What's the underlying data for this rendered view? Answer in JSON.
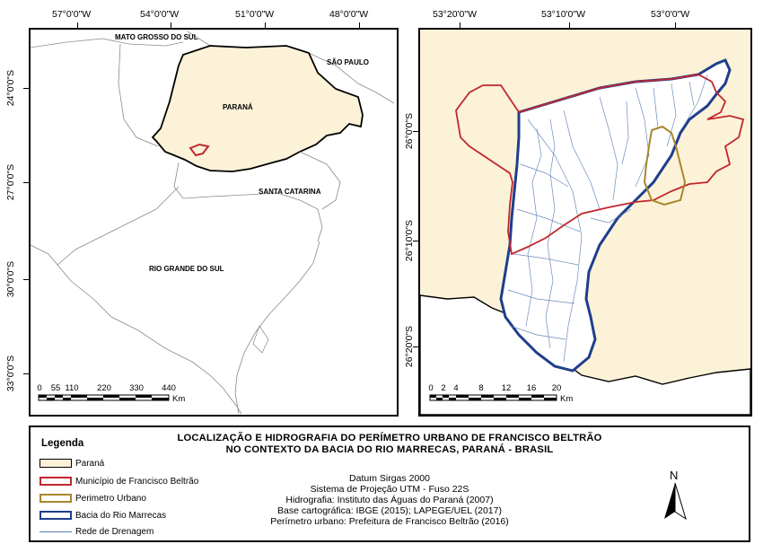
{
  "left_map": {
    "top_coords": [
      "57°0'0\"W",
      "54°0'0\"W",
      "51°0'0\"W",
      "48°0'0\"W"
    ],
    "side_coords": [
      "24°0'0\"S",
      "27°0'0\"S",
      "30°0'0\"S",
      "33°0'0\"S"
    ],
    "labels": {
      "mato_grosso_do_sul": "MATO GROSSO DO SUL",
      "sao_paulo": "SÃO PAULO",
      "parana": "PARANÁ",
      "santa_catarina": "SANTA CATARINA",
      "rio_grande_do_sul": "RIO GRANDE DO SUL"
    },
    "scale": {
      "ticks": [
        "0",
        "55",
        "110",
        "220",
        "330",
        "440"
      ],
      "unit": "Km"
    }
  },
  "right_map": {
    "top_coords": [
      "53°20'0\"W",
      "53°10'0\"W",
      "53°0'0\"W"
    ],
    "side_coords": [
      "26°0'0\"S",
      "26°10'0\"S",
      "26°20'0\"S"
    ],
    "scale": {
      "ticks": [
        "0",
        "2",
        "4",
        "8",
        "12",
        "16",
        "20"
      ],
      "unit": "Km"
    }
  },
  "legend": {
    "title": "Legenda",
    "items": [
      {
        "label": "Paraná",
        "kind": "fill",
        "fill": "#fcf2d8",
        "stroke": "#000000"
      },
      {
        "label": "Município de Francisco Beltrão",
        "kind": "outline",
        "stroke": "#c1272d"
      },
      {
        "label": "Perimetro Urbano",
        "kind": "outline",
        "stroke": "#a8862b"
      },
      {
        "label": "Bacia do Rio Marrecas",
        "kind": "outline",
        "stroke": "#1f3e8c"
      },
      {
        "label": "Rede de Drenagem",
        "kind": "line",
        "stroke": "#5b7fb6"
      }
    ]
  },
  "title": {
    "line1": "LOCALIZAÇÃO E HIDROGRAFIA DO PERÍMETRO URBANO DE FRANCISCO BELTRÃO",
    "line2": "NO CONTEXTO DA BACIA DO RIO MARRECAS, PARANÁ - BRASIL"
  },
  "info": [
    "Datum Sirgas 2000",
    "Sistema de Projeção UTM - Fuso 22S",
    "Hidrografia: Instituto das Águas do Paraná (2007)",
    "Base cartográfica: IBGE (2015); LAPEGE/UEL (2017)",
    "Perímetro urbano: Prefeitura de Francisco Beltrão (2016)"
  ],
  "north_arrow": {
    "label": "N"
  },
  "colors": {
    "parana_fill": "#fcf2d8",
    "municipality": "#c1272d",
    "urban_perimeter": "#a8862b",
    "basin": "#1f3e8c",
    "drainage": "#5b7fb6"
  }
}
